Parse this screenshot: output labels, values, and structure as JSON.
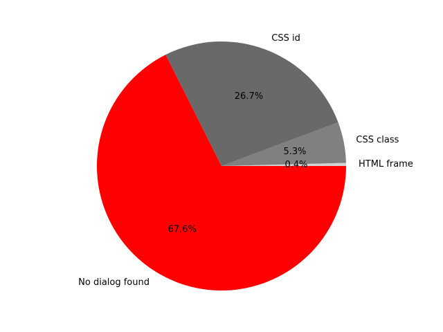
{
  "chart_data": {
    "type": "pie",
    "title": "",
    "slices": [
      {
        "label": "HTML frame",
        "value": 0.4,
        "pct_label": "0.4%",
        "color": "#d3d3d3"
      },
      {
        "label": "CSS class",
        "value": 5.3,
        "pct_label": "5.3%",
        "color": "#808080"
      },
      {
        "label": "CSS id",
        "value": 26.7,
        "pct_label": "26.7%",
        "color": "#696969"
      },
      {
        "label": "No dialog found",
        "value": 67.6,
        "pct_label": "67.6%",
        "color": "#ff0000"
      }
    ],
    "start_angle_deg": 0,
    "direction": "counterclockwise",
    "legend": "none"
  }
}
